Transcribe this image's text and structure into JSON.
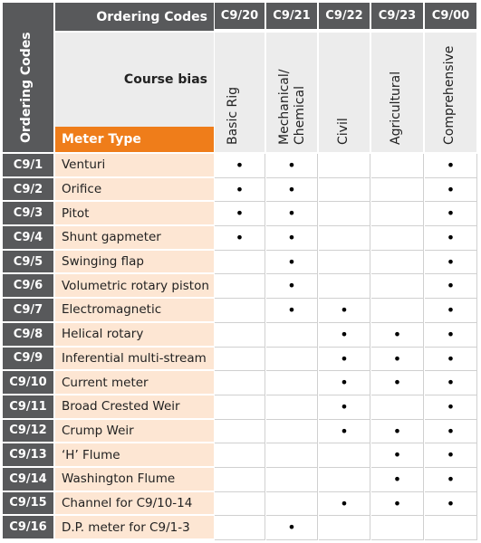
{
  "header": {
    "corner": "Ordering Codes",
    "ordering_codes": "Ordering Codes",
    "course_bias": "Course bias",
    "meter_type": "Meter Type"
  },
  "mark": "•",
  "columns": [
    {
      "code": "C9/20",
      "bias": "Basic Rig"
    },
    {
      "code": "C9/21",
      "bias": "Mechanical/ Chemical"
    },
    {
      "code": "C9/22",
      "bias": "Civil"
    },
    {
      "code": "C9/23",
      "bias": "Agricultural"
    },
    {
      "code": "C9/00",
      "bias": "Comprehensive"
    }
  ],
  "rows": [
    {
      "code": "C9/1",
      "meter": "Venturi",
      "cells": [
        true,
        true,
        false,
        false,
        true
      ]
    },
    {
      "code": "C9/2",
      "meter": "Orifice",
      "cells": [
        true,
        true,
        false,
        false,
        true
      ]
    },
    {
      "code": "C9/3",
      "meter": "Pitot",
      "cells": [
        true,
        true,
        false,
        false,
        true
      ]
    },
    {
      "code": "C9/4",
      "meter": "Shunt gapmeter",
      "cells": [
        true,
        true,
        false,
        false,
        true
      ]
    },
    {
      "code": "C9/5",
      "meter": "Swinging flap",
      "cells": [
        false,
        true,
        false,
        false,
        true
      ]
    },
    {
      "code": "C9/6",
      "meter": "Volumetric rotary piston",
      "cells": [
        false,
        true,
        false,
        false,
        true
      ]
    },
    {
      "code": "C9/7",
      "meter": "Electromagnetic",
      "cells": [
        false,
        true,
        true,
        false,
        true
      ]
    },
    {
      "code": "C9/8",
      "meter": "Helical rotary",
      "cells": [
        false,
        false,
        true,
        true,
        true
      ]
    },
    {
      "code": "C9/9",
      "meter": "Inferential multi-stream",
      "cells": [
        false,
        false,
        true,
        true,
        true
      ]
    },
    {
      "code": "C9/10",
      "meter": "Current meter",
      "cells": [
        false,
        false,
        true,
        true,
        true
      ]
    },
    {
      "code": "C9/11",
      "meter": "Broad Crested Weir",
      "cells": [
        false,
        false,
        true,
        false,
        true
      ]
    },
    {
      "code": "C9/12",
      "meter": "Crump Weir",
      "cells": [
        false,
        false,
        true,
        true,
        true
      ]
    },
    {
      "code": "C9/13",
      "meter": "‘H’ Flume",
      "cells": [
        false,
        false,
        false,
        true,
        true
      ]
    },
    {
      "code": "C9/14",
      "meter": "Washington Flume",
      "cells": [
        false,
        false,
        false,
        true,
        true
      ]
    },
    {
      "code": "C9/15",
      "meter": "Channel for C9/10-14",
      "cells": [
        false,
        false,
        true,
        true,
        true
      ]
    },
    {
      "code": "C9/16",
      "meter": "D.P. meter for C9/1-3",
      "cells": [
        false,
        true,
        false,
        false,
        false
      ]
    }
  ]
}
